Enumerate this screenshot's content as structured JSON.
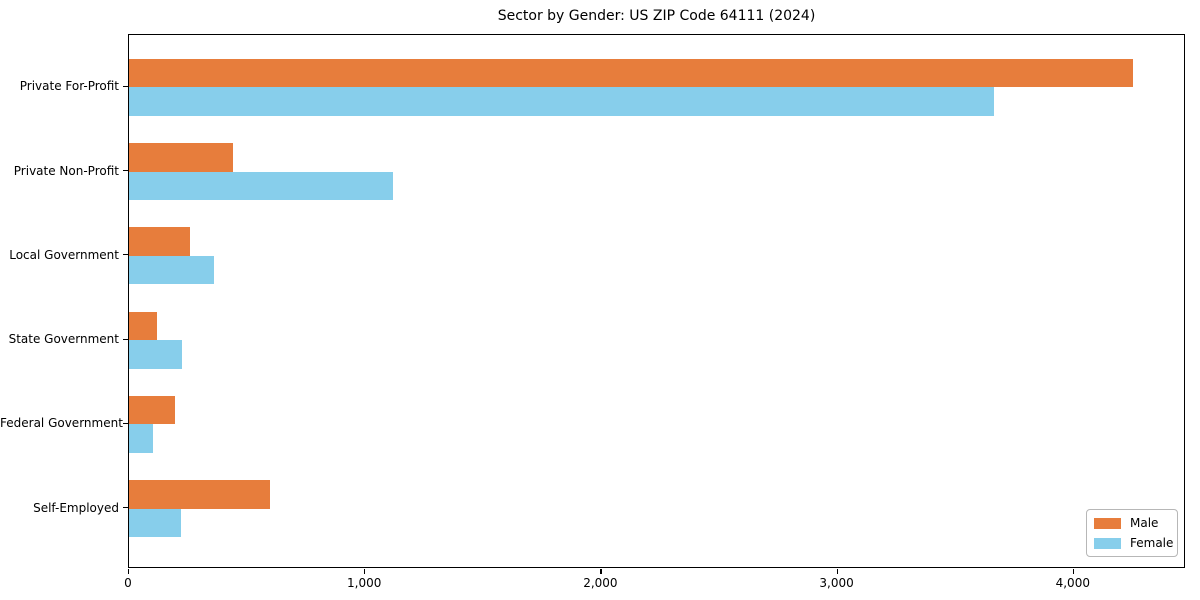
{
  "chart_data": {
    "type": "bar",
    "orientation": "horizontal",
    "title": "Sector by Gender: US ZIP Code 64111 (2024)",
    "categories": [
      "Private For-Profit",
      "Private Non-Profit",
      "Local Government",
      "State Government",
      "Federal Government",
      "Self-Employed"
    ],
    "series": [
      {
        "name": "Male",
        "color": "#e77d3c",
        "values": [
          4260,
          440,
          260,
          120,
          195,
          600
        ]
      },
      {
        "name": "Female",
        "color": "#87ceeb",
        "values": [
          3670,
          1120,
          360,
          225,
          100,
          220
        ]
      }
    ],
    "xlabel": "",
    "ylabel": "",
    "xlim": [
      0,
      4475
    ],
    "xticks": {
      "values": [
        0,
        1000,
        2000,
        3000,
        4000
      ],
      "labels": [
        "0",
        "1,000",
        "2,000",
        "3,000",
        "4,000"
      ]
    },
    "grid": false,
    "legend_position": "lower right",
    "background_color": "#ffffff",
    "spine_color": "#000000"
  }
}
